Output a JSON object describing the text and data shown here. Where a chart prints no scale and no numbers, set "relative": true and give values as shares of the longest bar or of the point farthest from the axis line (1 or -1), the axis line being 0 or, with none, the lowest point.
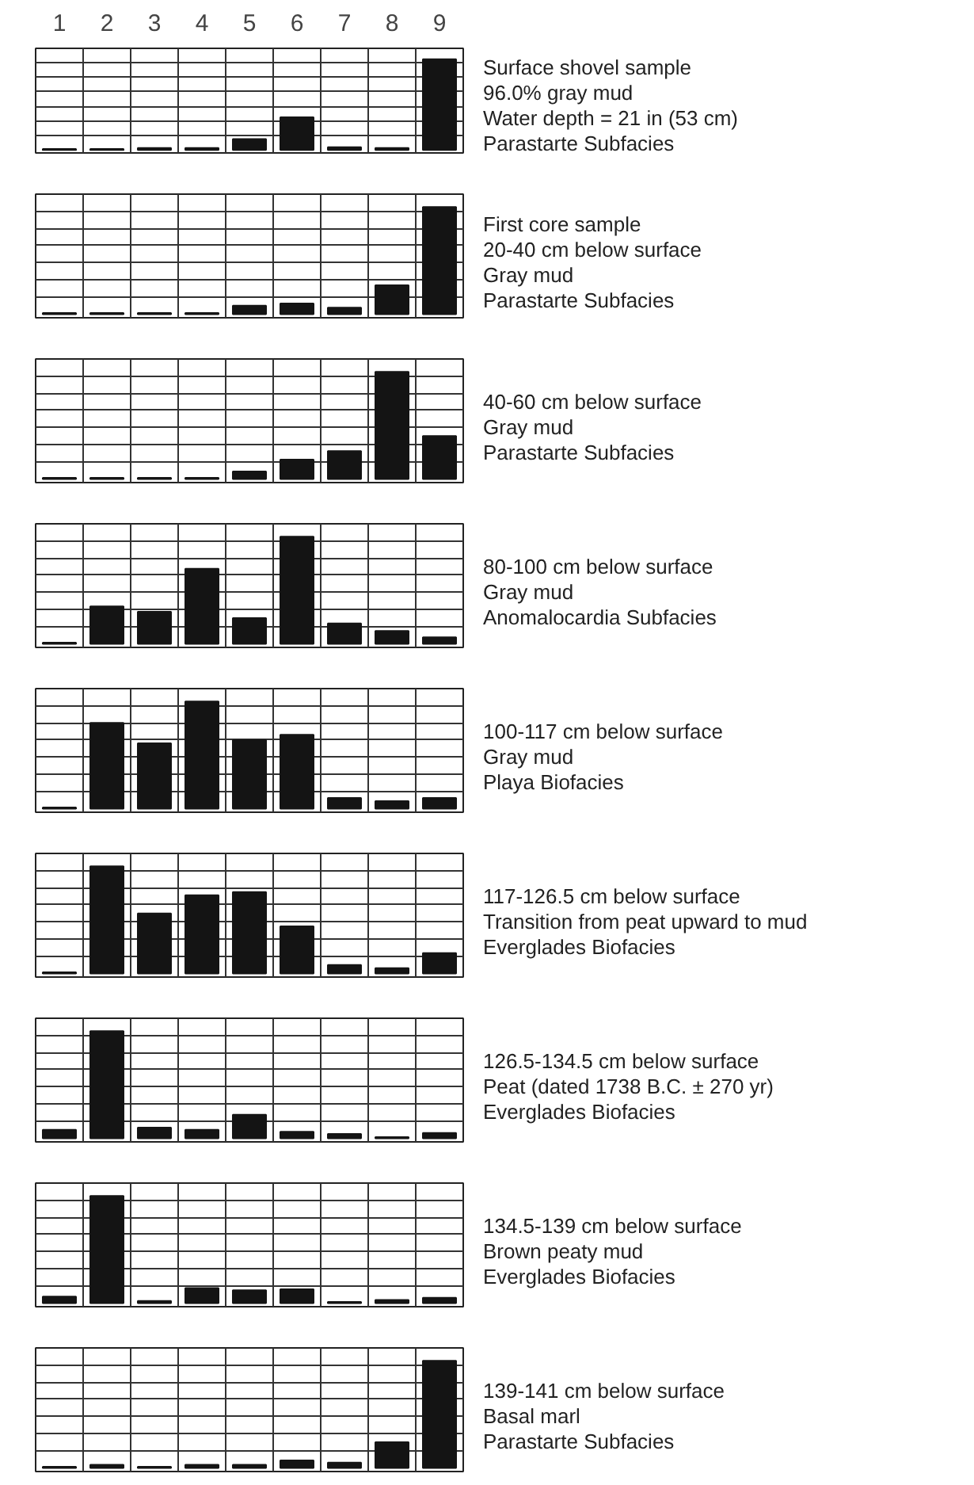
{
  "chart_data": [
    {
      "type": "bar",
      "relative": true,
      "color": "#141414",
      "grid": true,
      "tick_labels": "x",
      "categories": [
        "1",
        "2",
        "3",
        "4",
        "5",
        "6",
        "7",
        "8",
        "9"
      ],
      "values": [
        0.01,
        0.01,
        0.02,
        0.02,
        0.12,
        0.36,
        0.03,
        0.02,
        1
      ],
      "annotations": [
        "Surface shovel sample",
        "96.0% gray mud",
        "Water depth = 21 in (53 cm)",
        "Parastarte Subfacies"
      ]
    },
    {
      "type": "bar",
      "relative": true,
      "color": "#141414",
      "grid": true,
      "tick_labels": false,
      "categories": [
        "1",
        "2",
        "3",
        "4",
        "5",
        "6",
        "7",
        "8",
        "9"
      ],
      "values": [
        0.01,
        0.01,
        0.01,
        0.01,
        0.08,
        0.1,
        0.06,
        0.27,
        1
      ],
      "annotations": [
        "First core sample",
        "20-40 cm below surface",
        "Gray mud",
        "Parastarte Subfacies"
      ]
    },
    {
      "type": "bar",
      "relative": true,
      "color": "#141414",
      "grid": true,
      "tick_labels": false,
      "categories": [
        "1",
        "2",
        "3",
        "4",
        "5",
        "6",
        "7",
        "8",
        "9"
      ],
      "values": [
        0.01,
        0.01,
        0.01,
        0.01,
        0.07,
        0.18,
        0.26,
        1,
        0.4
      ],
      "annotations": [
        "40-60 cm below surface",
        "Gray mud",
        "Parastarte Subfacies"
      ]
    },
    {
      "type": "bar",
      "relative": true,
      "color": "#141414",
      "grid": true,
      "tick_labels": false,
      "categories": [
        "1",
        "2",
        "3",
        "4",
        "5",
        "6",
        "7",
        "8",
        "9"
      ],
      "values": [
        0.01,
        0.35,
        0.3,
        0.7,
        0.24,
        1,
        0.19,
        0.12,
        0.06
      ],
      "annotations": [
        "80-100 cm below surface",
        "Gray mud",
        "Anomalocardia Subfacies"
      ]
    },
    {
      "type": "bar",
      "relative": true,
      "color": "#141414",
      "grid": true,
      "tick_labels": false,
      "categories": [
        "1",
        "2",
        "3",
        "4",
        "5",
        "6",
        "7",
        "8",
        "9"
      ],
      "values": [
        0.01,
        0.8,
        0.61,
        1,
        0.64,
        0.69,
        0.1,
        0.07,
        0.1
      ],
      "annotations": [
        "100-117 cm below surface",
        "Gray mud",
        "Playa Biofacies"
      ]
    },
    {
      "type": "bar",
      "relative": true,
      "color": "#141414",
      "grid": true,
      "tick_labels": false,
      "categories": [
        "1",
        "2",
        "3",
        "4",
        "5",
        "6",
        "7",
        "8",
        "9"
      ],
      "values": [
        0.01,
        1,
        0.56,
        0.73,
        0.76,
        0.44,
        0.08,
        0.05,
        0.19
      ],
      "annotations": [
        "117-126.5 cm below surface",
        "Transition from peat upward to mud",
        "Everglades Biofacies"
      ]
    },
    {
      "type": "bar",
      "relative": true,
      "color": "#141414",
      "grid": true,
      "tick_labels": false,
      "categories": [
        "1",
        "2",
        "3",
        "4",
        "5",
        "6",
        "7",
        "8",
        "9"
      ],
      "values": [
        0.08,
        1,
        0.1,
        0.08,
        0.22,
        0.06,
        0.04,
        0.01,
        0.05
      ],
      "annotations": [
        "126.5-134.5 cm below surface",
        "Peat (dated 1738 B.C. ± 270 yr)",
        "Everglades Biofacies"
      ]
    },
    {
      "type": "bar",
      "relative": true,
      "color": "#141414",
      "grid": true,
      "tick_labels": false,
      "categories": [
        "1",
        "2",
        "3",
        "4",
        "5",
        "6",
        "7",
        "8",
        "9"
      ],
      "values": [
        0.06,
        1,
        0.02,
        0.14,
        0.12,
        0.13,
        0.01,
        0.03,
        0.05
      ],
      "annotations": [
        "134.5-139 cm below surface",
        "Brown peaty mud",
        "Everglades Biofacies"
      ]
    },
    {
      "type": "bar",
      "relative": true,
      "color": "#141414",
      "grid": true,
      "tick_labels": false,
      "categories": [
        "1",
        "2",
        "3",
        "4",
        "5",
        "6",
        "7",
        "8",
        "9"
      ],
      "values": [
        0.01,
        0.03,
        0.01,
        0.03,
        0.03,
        0.07,
        0.05,
        0.24,
        1
      ],
      "annotations": [
        "139-141 cm below surface",
        "Basal marl",
        "Parastarte Subfacies"
      ]
    }
  ]
}
